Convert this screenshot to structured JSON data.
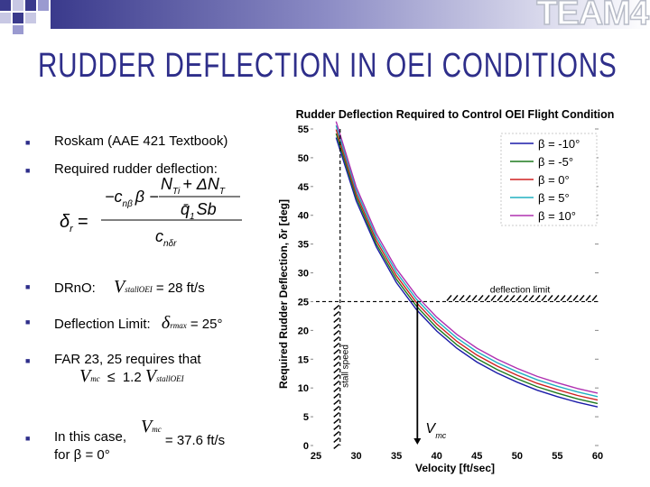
{
  "header": {
    "brand": "TEAM4"
  },
  "slide": {
    "title": "RUDDER DEFLECTION IN OEI CONDITIONS"
  },
  "bullets": {
    "b1": "Roskam (AAE 421 Textbook)",
    "b2": "Required rudder deflection:",
    "b3_label": "DRnO:",
    "b3_value": "= 28 ft/s",
    "b4_label": "Deflection Limit:",
    "b4_value": "= 25°",
    "b5_label": "FAR 23, 25 requires that",
    "b5_value": "1.2",
    "b6_line1": "In this case,",
    "b6_value": "= 37.6 ft/s",
    "b6_line2": "for β = 0°"
  },
  "math": {
    "vstall": "V",
    "vstall_sub": "stallOEI",
    "delta": "δ",
    "delta_sub": "rmax",
    "vmc": "V",
    "vmc_sub": "mc",
    "leq": "≤",
    "formula_lhs": "δ",
    "formula_lhs_sub": "r",
    "formula_eq": "=",
    "formula_num_a": "−c",
    "formula_num_a_sub": "nβ",
    "formula_num_b": "β −",
    "formula_inner_num": "N",
    "formula_inner_num_sub": "Ti",
    "formula_inner_num_rest": "+ ΔN",
    "formula_inner_num_rest_sub": "T",
    "formula_inner_den": "q̄",
    "formula_inner_den_sub": "1",
    "formula_inner_den_rest": "Sb",
    "formula_den": "c",
    "formula_den_sub": "nδr"
  },
  "chart_data": {
    "type": "line",
    "title": "Rudder Deflection Required to Control OEI Flight Condition",
    "xlabel": "Velocity [ft/sec]",
    "ylabel": "Required Rudder Deflection, δr [deg]",
    "xlim": [
      25,
      60
    ],
    "ylim": [
      0,
      55
    ],
    "xticks": [
      25,
      30,
      35,
      40,
      45,
      50,
      55,
      60
    ],
    "yticks": [
      0,
      5,
      10,
      15,
      20,
      25,
      30,
      35,
      40,
      45,
      50,
      55
    ],
    "legend_position": "top-right",
    "x": [
      27.5,
      30,
      32.5,
      35,
      37.5,
      40,
      42.5,
      45,
      47.5,
      50,
      52.5,
      55,
      57.5,
      60
    ],
    "series": [
      {
        "name": "β = -10°",
        "color": "#1a1aa8",
        "values": [
          53.5,
          42.5,
          34.5,
          28.3,
          23.6,
          19.9,
          16.9,
          14.5,
          12.6,
          11.0,
          9.6,
          8.5,
          7.5,
          6.7
        ]
      },
      {
        "name": "β = -5°",
        "color": "#1f7a1f",
        "values": [
          54.2,
          43.1,
          35.0,
          28.9,
          24.2,
          20.5,
          17.5,
          15.1,
          13.2,
          11.6,
          10.2,
          9.1,
          8.1,
          7.3
        ]
      },
      {
        "name": "β = 0°",
        "color": "#d02020",
        "values": [
          54.9,
          43.7,
          35.6,
          29.5,
          24.8,
          21.1,
          18.1,
          15.7,
          13.8,
          12.2,
          10.8,
          9.7,
          8.7,
          7.9
        ]
      },
      {
        "name": "β = 5°",
        "color": "#20b0c0",
        "values": [
          55.6,
          44.3,
          36.2,
          30.1,
          25.4,
          21.7,
          18.7,
          16.3,
          14.4,
          12.8,
          11.4,
          10.3,
          9.3,
          8.5
        ]
      },
      {
        "name": "β = 10°",
        "color": "#b030b0",
        "values": [
          56.3,
          44.9,
          36.8,
          30.7,
          26.0,
          22.3,
          19.3,
          16.9,
          15.0,
          13.4,
          12.0,
          10.9,
          9.9,
          9.1
        ]
      }
    ],
    "reference_lines": {
      "deflection_limit": {
        "y": 25,
        "label": "deflection limit"
      },
      "stall_speed": {
        "x": 28,
        "label": "stall speed"
      },
      "vmc": {
        "x": 37.6,
        "label": "V",
        "label_sub": "mc"
      }
    }
  }
}
